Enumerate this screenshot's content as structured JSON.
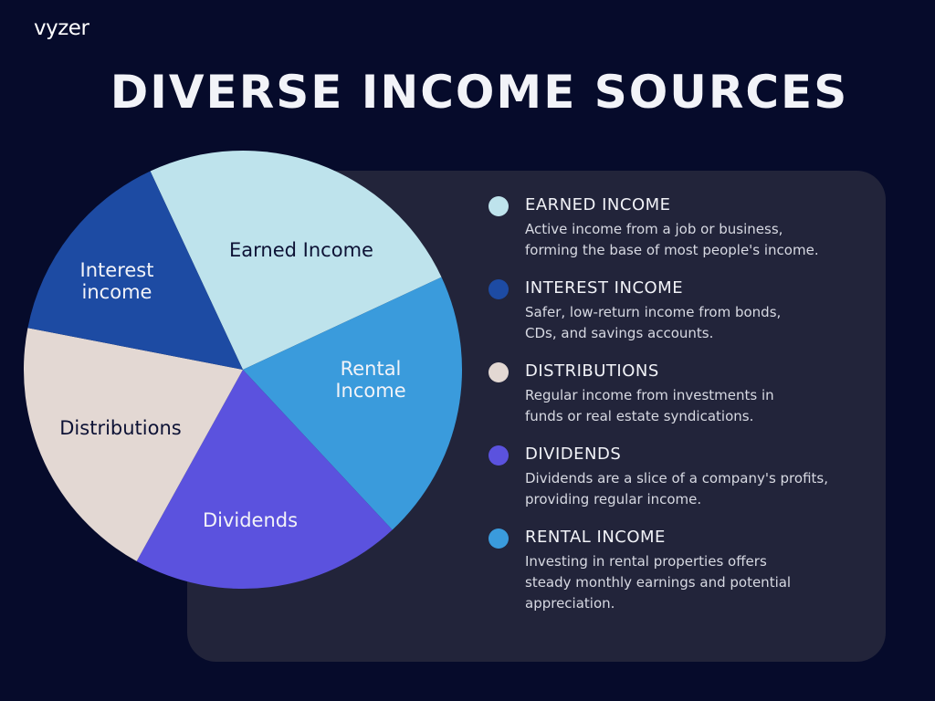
{
  "brand": {
    "logo": "vyzer"
  },
  "title": "DIVERSE INCOME SOURCES",
  "colors": {
    "background": "#060b2b",
    "panel": "#22243a"
  },
  "chart_data": {
    "type": "pie",
    "title": "DIVERSE INCOME SOURCES",
    "slices": [
      {
        "label": "Earned Income",
        "value": 25,
        "color": "#bee3ec",
        "label_lines": [
          "Earned Income"
        ],
        "label_dark": true
      },
      {
        "label": "Rental Income",
        "value": 20,
        "color": "#3a9bdc",
        "label_lines": [
          "Rental",
          "Income"
        ],
        "label_dark": false
      },
      {
        "label": "Dividends",
        "value": 20,
        "color": "#5b52de",
        "label_lines": [
          "Dividends"
        ],
        "label_dark": false
      },
      {
        "label": "Distributions",
        "value": 20,
        "color": "#e3d8d3",
        "label_lines": [
          "Distributions"
        ],
        "label_dark": true
      },
      {
        "label": "Interest income",
        "value": 15,
        "color": "#1d4ba3",
        "label_lines": [
          "Interest",
          "income"
        ],
        "label_dark": false
      }
    ]
  },
  "legend": [
    {
      "title": "EARNED INCOME",
      "desc": [
        "Active income from a job or business,",
        "forming the base of most people's income."
      ],
      "color": "#bee3ec"
    },
    {
      "title": "INTEREST INCOME",
      "desc": [
        "Safer, low-return income from bonds,",
        "CDs, and savings accounts."
      ],
      "color": "#1d4ba3"
    },
    {
      "title": "DISTRIBUTIONS",
      "desc": [
        "Regular income from investments in",
        "funds or real estate syndications."
      ],
      "color": "#e3d8d3"
    },
    {
      "title": "DIVIDENDS",
      "desc": [
        "Dividends are a slice of a company's profits,",
        "providing regular income."
      ],
      "color": "#5b52de"
    },
    {
      "title": "RENTAL INCOME",
      "desc": [
        "Investing in rental properties offers",
        "steady monthly earnings and potential",
        "appreciation."
      ],
      "color": "#3a9bdc"
    }
  ]
}
